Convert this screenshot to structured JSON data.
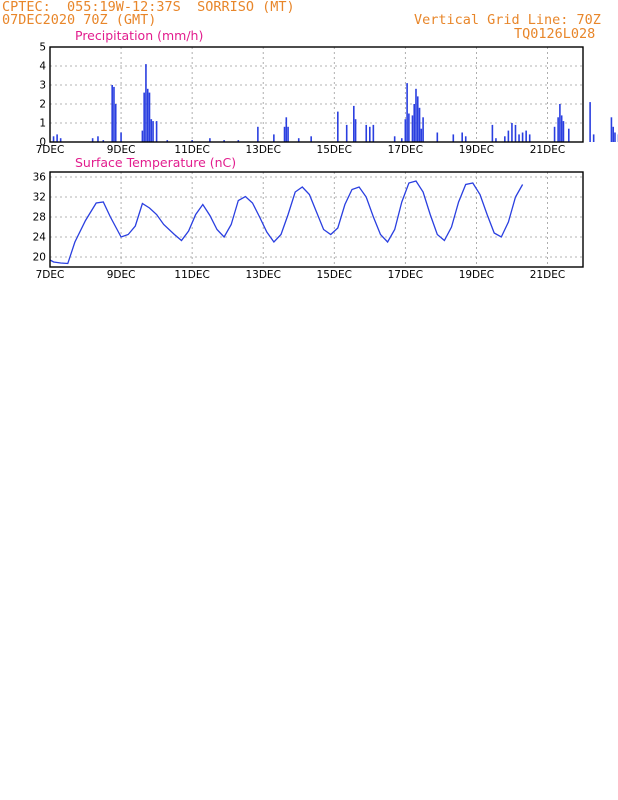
{
  "header": {
    "left_line1": "CPTEC:  055:19W-12:37S  SORRISO (MT)",
    "left_line2": "07DEC2020 70Z (GMT)",
    "right_line1": "Vertical Grid Line: 70Z",
    "right_line2": "TQ0126L028"
  },
  "colors": {
    "title": "#e21d8e",
    "header": "#e8862a",
    "line": "#2a3fe0",
    "cloud": "#b0b0b0",
    "grid": "#9a9a9a"
  },
  "x_ticks": [
    "7DEC",
    "9DEC",
    "11DEC",
    "13DEC",
    "15DEC",
    "17DEC",
    "19DEC",
    "21DEC"
  ],
  "chart_data": [
    {
      "type": "bar",
      "title": "Precipitation (mm/h)",
      "ylim": [
        0,
        5
      ],
      "yticks": [
        "0",
        "1",
        "2",
        "3",
        "4",
        "5"
      ],
      "points": [
        [
          0.1,
          0.3
        ],
        [
          0.2,
          0.4
        ],
        [
          0.3,
          0.2
        ],
        [
          1.2,
          0.2
        ],
        [
          1.35,
          0.3
        ],
        [
          1.5,
          0.1
        ],
        [
          1.75,
          3.0
        ],
        [
          1.8,
          2.9
        ],
        [
          1.85,
          2.0
        ],
        [
          2.0,
          0.5
        ],
        [
          2.6,
          0.6
        ],
        [
          2.65,
          2.6
        ],
        [
          2.7,
          4.1
        ],
        [
          2.75,
          2.8
        ],
        [
          2.8,
          2.6
        ],
        [
          2.85,
          1.2
        ],
        [
          2.9,
          1.1
        ],
        [
          3.0,
          1.1
        ],
        [
          3.3,
          0.1
        ],
        [
          4.0,
          0.1
        ],
        [
          4.5,
          0.2
        ],
        [
          4.9,
          0.1
        ],
        [
          5.3,
          0.1
        ],
        [
          5.85,
          0.8
        ],
        [
          6.3,
          0.4
        ],
        [
          6.6,
          0.8
        ],
        [
          6.65,
          1.3
        ],
        [
          6.7,
          0.8
        ],
        [
          7.0,
          0.2
        ],
        [
          7.35,
          0.3
        ],
        [
          8.1,
          1.6
        ],
        [
          8.35,
          0.9
        ],
        [
          8.55,
          1.9
        ],
        [
          8.6,
          1.2
        ],
        [
          8.9,
          0.9
        ],
        [
          9.0,
          0.8
        ],
        [
          9.1,
          0.9
        ],
        [
          9.7,
          0.3
        ],
        [
          9.9,
          0.2
        ],
        [
          10.0,
          1.2
        ],
        [
          10.05,
          3.1
        ],
        [
          10.1,
          1.5
        ],
        [
          10.2,
          1.4
        ],
        [
          10.25,
          2.0
        ],
        [
          10.3,
          2.8
        ],
        [
          10.35,
          2.4
        ],
        [
          10.4,
          1.8
        ],
        [
          10.45,
          0.7
        ],
        [
          10.5,
          1.3
        ],
        [
          10.9,
          0.5
        ],
        [
          11.35,
          0.4
        ],
        [
          11.6,
          0.5
        ],
        [
          11.7,
          0.3
        ],
        [
          12.45,
          0.9
        ],
        [
          12.55,
          0.2
        ],
        [
          12.8,
          0.3
        ],
        [
          12.9,
          0.6
        ],
        [
          13.0,
          1.0
        ],
        [
          13.1,
          0.9
        ],
        [
          13.2,
          0.4
        ],
        [
          13.3,
          0.5
        ],
        [
          13.4,
          0.6
        ],
        [
          13.5,
          0.4
        ],
        [
          14.2,
          0.8
        ],
        [
          14.3,
          1.3
        ],
        [
          14.35,
          2.0
        ],
        [
          14.4,
          1.4
        ],
        [
          14.45,
          1.1
        ],
        [
          14.6,
          0.7
        ],
        [
          15.2,
          2.1
        ],
        [
          15.3,
          0.4
        ],
        [
          15.8,
          1.3
        ],
        [
          15.85,
          0.8
        ],
        [
          15.9,
          0.5
        ],
        [
          16.0,
          0.4
        ],
        [
          16.1,
          0.7
        ],
        [
          16.2,
          1.1
        ],
        [
          16.3,
          1.3
        ],
        [
          16.4,
          1.0
        ],
        [
          16.5,
          0.5
        ],
        [
          16.6,
          1.0
        ],
        [
          16.65,
          0.3
        ],
        [
          16.8,
          0.1
        ],
        [
          17.0,
          0.9
        ],
        [
          17.1,
          0.3
        ]
      ],
      "x_axis_label": "DEC"
    },
    {
      "type": "line",
      "title": "Surface Temperature (nC)",
      "ylim": [
        18,
        37
      ],
      "yticks": [
        "20",
        "24",
        "28",
        "32",
        "36"
      ],
      "points": [
        [
          0.0,
          19.4
        ],
        [
          0.1,
          19.0
        ],
        [
          0.3,
          18.8
        ],
        [
          0.5,
          18.7
        ],
        [
          0.7,
          23.0
        ],
        [
          1.0,
          27.3
        ],
        [
          1.3,
          30.8
        ],
        [
          1.5,
          31.0
        ],
        [
          1.7,
          28.0
        ],
        [
          2.0,
          24.0
        ],
        [
          2.2,
          24.5
        ],
        [
          2.4,
          26.2
        ],
        [
          2.6,
          30.7
        ],
        [
          2.8,
          29.8
        ],
        [
          3.0,
          28.5
        ],
        [
          3.2,
          26.5
        ],
        [
          3.5,
          24.5
        ],
        [
          3.7,
          23.3
        ],
        [
          3.9,
          25.2
        ],
        [
          4.1,
          28.5
        ],
        [
          4.3,
          30.5
        ],
        [
          4.5,
          28.3
        ],
        [
          4.7,
          25.5
        ],
        [
          4.9,
          24.0
        ],
        [
          5.1,
          26.5
        ],
        [
          5.3,
          31.3
        ],
        [
          5.5,
          32.1
        ],
        [
          5.7,
          30.8
        ],
        [
          5.9,
          28.0
        ],
        [
          6.1,
          25.0
        ],
        [
          6.3,
          23.0
        ],
        [
          6.5,
          24.5
        ],
        [
          6.7,
          28.5
        ],
        [
          6.9,
          33.0
        ],
        [
          7.1,
          34.0
        ],
        [
          7.3,
          32.5
        ],
        [
          7.5,
          29.0
        ],
        [
          7.7,
          25.5
        ],
        [
          7.9,
          24.5
        ],
        [
          8.1,
          25.8
        ],
        [
          8.3,
          30.5
        ],
        [
          8.5,
          33.5
        ],
        [
          8.7,
          34.0
        ],
        [
          8.9,
          32.0
        ],
        [
          9.1,
          28.0
        ],
        [
          9.3,
          24.5
        ],
        [
          9.5,
          23.0
        ],
        [
          9.7,
          25.5
        ],
        [
          9.9,
          31.0
        ],
        [
          10.1,
          34.8
        ],
        [
          10.3,
          35.2
        ],
        [
          10.5,
          33.0
        ],
        [
          10.7,
          28.5
        ],
        [
          10.9,
          24.5
        ],
        [
          11.1,
          23.3
        ],
        [
          11.3,
          26.0
        ],
        [
          11.5,
          31.0
        ],
        [
          11.7,
          34.5
        ],
        [
          11.9,
          34.8
        ],
        [
          12.1,
          32.5
        ],
        [
          12.3,
          28.5
        ],
        [
          12.5,
          24.8
        ],
        [
          12.7,
          24.0
        ],
        [
          12.9,
          27.0
        ],
        [
          13.1,
          32.0
        ],
        [
          13.3,
          34.5
        ]
      ]
    }
  ]
}
